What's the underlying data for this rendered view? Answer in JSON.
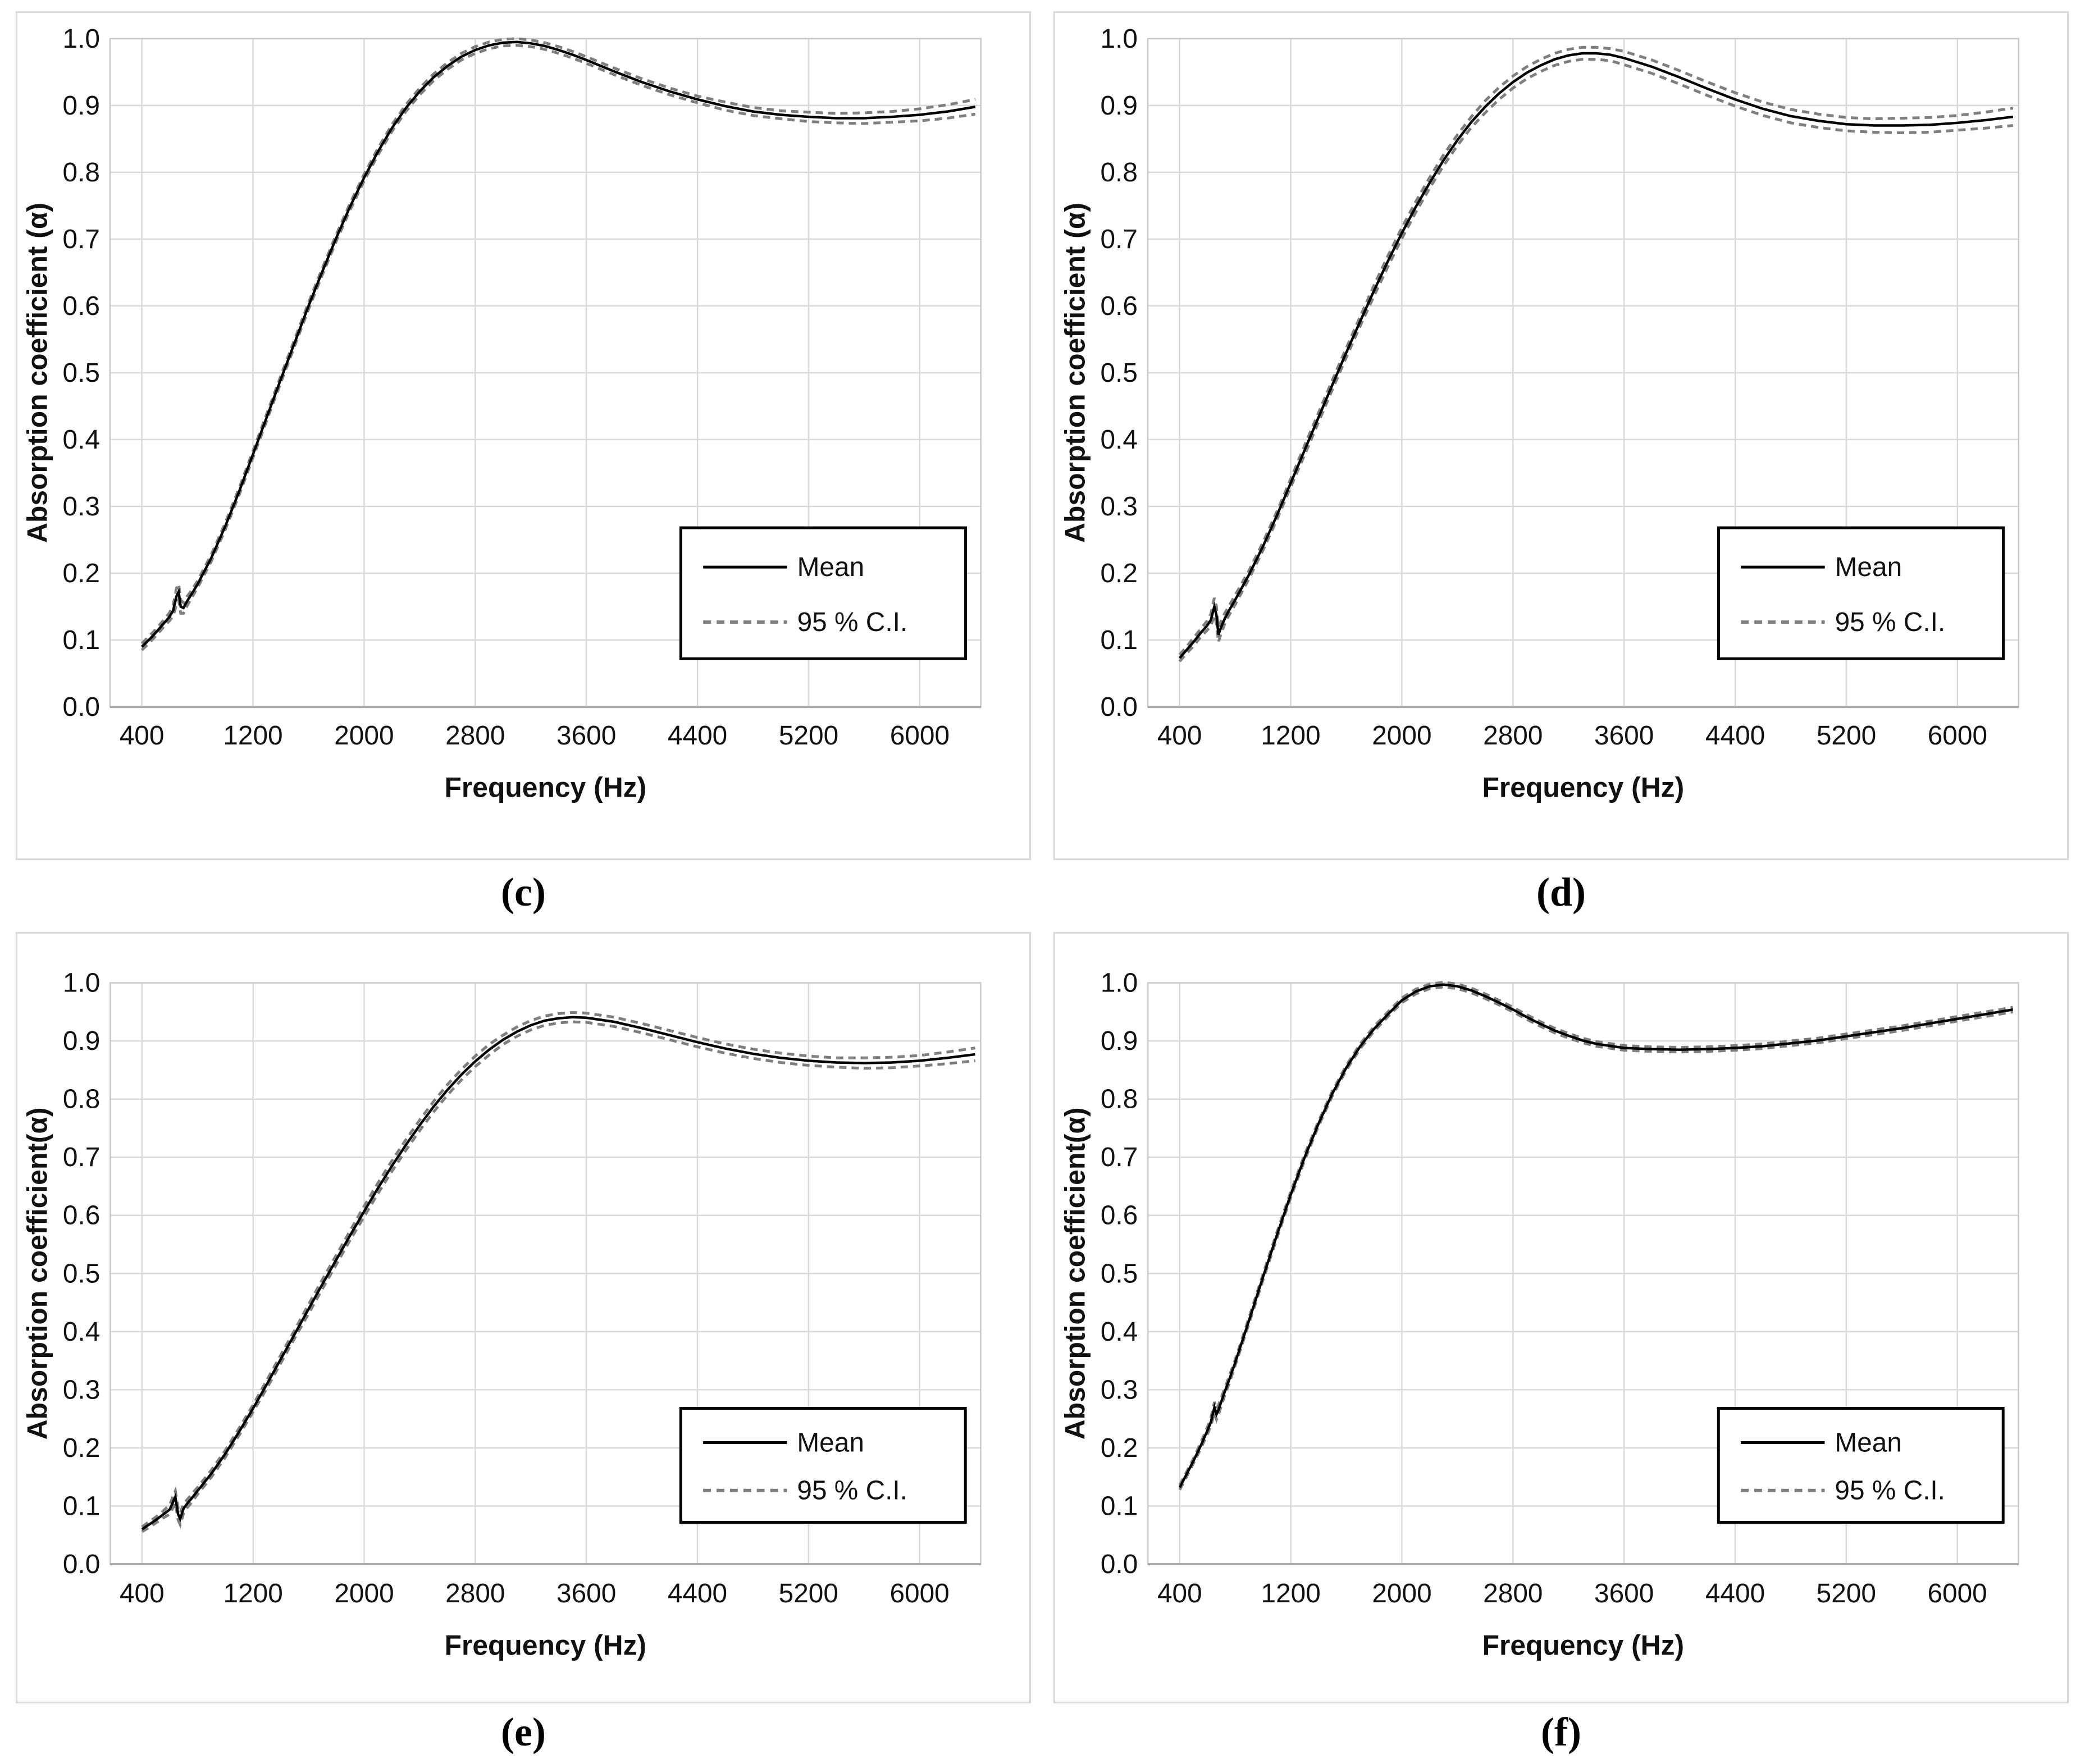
{
  "colors": {
    "mean_line": "#000000",
    "ci_line": "#7f7f7f",
    "gridline": "#d9d9d9",
    "plot_border": "#c9c9c9",
    "axis_line": "#a6a6a6",
    "text": "#111111",
    "legend_border": "#000000"
  },
  "chart_data": [
    {
      "type": "line",
      "title": "(c)",
      "xlabel": "Frequency (Hz)",
      "ylabel": "Absorption coefficient (α)",
      "xlim": [
        171,
        6440
      ],
      "ylim": [
        0.0,
        1.0
      ],
      "xticks": [
        400,
        1200,
        2000,
        2800,
        3600,
        4400,
        5200,
        6000
      ],
      "ytick_labels": [
        "0.0",
        "0.1",
        "0.2",
        "0.3",
        "0.4",
        "0.5",
        "0.6",
        "0.7",
        "0.8",
        "0.9",
        "1.0"
      ],
      "grid": true,
      "legend_position": "lower right",
      "legend": [
        "Mean",
        "95 % C.I."
      ],
      "columns": [
        "frequency_hz",
        "mean_absorption",
        "ci95_halfwidth"
      ],
      "points": [
        [
          400,
          0.09,
          0.005
        ],
        [
          450,
          0.1,
          0.005
        ],
        [
          500,
          0.111,
          0.005
        ],
        [
          550,
          0.123,
          0.005
        ],
        [
          600,
          0.135,
          0.006
        ],
        [
          625,
          0.144,
          0.008
        ],
        [
          650,
          0.166,
          0.012
        ],
        [
          665,
          0.172,
          0.012
        ],
        [
          680,
          0.15,
          0.01
        ],
        [
          700,
          0.148,
          0.008
        ],
        [
          725,
          0.158,
          0.007
        ],
        [
          750,
          0.166,
          0.006
        ],
        [
          800,
          0.183,
          0.005
        ],
        [
          900,
          0.223,
          0.005
        ],
        [
          1000,
          0.27,
          0.005
        ],
        [
          1100,
          0.322,
          0.005
        ],
        [
          1200,
          0.378,
          0.005
        ],
        [
          1300,
          0.434,
          0.005
        ],
        [
          1400,
          0.49,
          0.005
        ],
        [
          1500,
          0.545,
          0.005
        ],
        [
          1600,
          0.6,
          0.005
        ],
        [
          1700,
          0.652,
          0.005
        ],
        [
          1800,
          0.702,
          0.005
        ],
        [
          1900,
          0.749,
          0.005
        ],
        [
          2000,
          0.792,
          0.005
        ],
        [
          2100,
          0.831,
          0.005
        ],
        [
          2200,
          0.866,
          0.005
        ],
        [
          2300,
          0.896,
          0.005
        ],
        [
          2400,
          0.921,
          0.005
        ],
        [
          2500,
          0.942,
          0.005
        ],
        [
          2600,
          0.959,
          0.005
        ],
        [
          2700,
          0.973,
          0.005
        ],
        [
          2800,
          0.983,
          0.005
        ],
        [
          2900,
          0.99,
          0.005
        ],
        [
          3000,
          0.994,
          0.005
        ],
        [
          3100,
          0.995,
          0.005
        ],
        [
          3200,
          0.993,
          0.005
        ],
        [
          3300,
          0.989,
          0.005
        ],
        [
          3400,
          0.983,
          0.005
        ],
        [
          3500,
          0.976,
          0.005
        ],
        [
          3600,
          0.968,
          0.005
        ],
        [
          3800,
          0.951,
          0.005
        ],
        [
          4000,
          0.935,
          0.005
        ],
        [
          4200,
          0.921,
          0.005
        ],
        [
          4400,
          0.909,
          0.005
        ],
        [
          4600,
          0.899,
          0.006
        ],
        [
          4800,
          0.891,
          0.006
        ],
        [
          5000,
          0.886,
          0.006
        ],
        [
          5200,
          0.883,
          0.007
        ],
        [
          5400,
          0.881,
          0.007
        ],
        [
          5600,
          0.881,
          0.008
        ],
        [
          5800,
          0.883,
          0.008
        ],
        [
          6000,
          0.886,
          0.009
        ],
        [
          6200,
          0.891,
          0.01
        ],
        [
          6400,
          0.898,
          0.011
        ]
      ]
    },
    {
      "type": "line",
      "title": "(d)",
      "xlabel": "Frequency (Hz)",
      "ylabel": "Absorption coefficient (α)",
      "xlim": [
        171,
        6440
      ],
      "ylim": [
        0.0,
        1.0
      ],
      "xticks": [
        400,
        1200,
        2000,
        2800,
        3600,
        4400,
        5200,
        6000
      ],
      "ytick_labels": [
        "0.0",
        "0.1",
        "0.2",
        "0.3",
        "0.4",
        "0.5",
        "0.6",
        "0.7",
        "0.8",
        "0.9",
        "1.0"
      ],
      "grid": true,
      "legend_position": "lower right",
      "legend": [
        "Mean",
        "95 % C.I."
      ],
      "columns": [
        "frequency_hz",
        "mean_absorption",
        "ci95_halfwidth"
      ],
      "points": [
        [
          400,
          0.073,
          0.005
        ],
        [
          450,
          0.085,
          0.005
        ],
        [
          500,
          0.097,
          0.006
        ],
        [
          550,
          0.11,
          0.006
        ],
        [
          600,
          0.122,
          0.007
        ],
        [
          625,
          0.13,
          0.009
        ],
        [
          650,
          0.15,
          0.013
        ],
        [
          665,
          0.138,
          0.013
        ],
        [
          680,
          0.108,
          0.011
        ],
        [
          700,
          0.12,
          0.009
        ],
        [
          725,
          0.132,
          0.008
        ],
        [
          750,
          0.142,
          0.007
        ],
        [
          800,
          0.16,
          0.007
        ],
        [
          900,
          0.198,
          0.006
        ],
        [
          1000,
          0.24,
          0.006
        ],
        [
          1100,
          0.286,
          0.006
        ],
        [
          1200,
          0.335,
          0.006
        ],
        [
          1300,
          0.384,
          0.007
        ],
        [
          1400,
          0.433,
          0.007
        ],
        [
          1500,
          0.482,
          0.007
        ],
        [
          1600,
          0.53,
          0.007
        ],
        [
          1700,
          0.577,
          0.007
        ],
        [
          1800,
          0.623,
          0.008
        ],
        [
          1900,
          0.667,
          0.008
        ],
        [
          2000,
          0.709,
          0.008
        ],
        [
          2100,
          0.748,
          0.008
        ],
        [
          2200,
          0.784,
          0.008
        ],
        [
          2300,
          0.818,
          0.008
        ],
        [
          2400,
          0.848,
          0.008
        ],
        [
          2500,
          0.875,
          0.008
        ],
        [
          2600,
          0.898,
          0.009
        ],
        [
          2700,
          0.918,
          0.009
        ],
        [
          2800,
          0.935,
          0.009
        ],
        [
          2900,
          0.949,
          0.009
        ],
        [
          3000,
          0.96,
          0.009
        ],
        [
          3100,
          0.969,
          0.009
        ],
        [
          3200,
          0.975,
          0.009
        ],
        [
          3300,
          0.978,
          0.009
        ],
        [
          3400,
          0.978,
          0.009
        ],
        [
          3500,
          0.976,
          0.009
        ],
        [
          3600,
          0.971,
          0.01
        ],
        [
          3800,
          0.958,
          0.01
        ],
        [
          4000,
          0.942,
          0.01
        ],
        [
          4200,
          0.925,
          0.01
        ],
        [
          4400,
          0.909,
          0.01
        ],
        [
          4600,
          0.895,
          0.01
        ],
        [
          4800,
          0.884,
          0.01
        ],
        [
          5000,
          0.877,
          0.01
        ],
        [
          5200,
          0.872,
          0.01
        ],
        [
          5400,
          0.87,
          0.01
        ],
        [
          5600,
          0.87,
          0.011
        ],
        [
          5800,
          0.871,
          0.011
        ],
        [
          6000,
          0.874,
          0.011
        ],
        [
          6200,
          0.878,
          0.012
        ],
        [
          6400,
          0.883,
          0.013
        ]
      ]
    },
    {
      "type": "line",
      "title": "(e)",
      "xlabel": "Frequency (Hz)",
      "ylabel": "Absorption coefficient(α)",
      "xlim": [
        171,
        6440
      ],
      "ylim": [
        0.0,
        1.0
      ],
      "xticks": [
        400,
        1200,
        2000,
        2800,
        3600,
        4400,
        5200,
        6000
      ],
      "ytick_labels": [
        "0.0",
        "0.1",
        "0.2",
        "0.3",
        "0.4",
        "0.5",
        "0.6",
        "0.7",
        "0.8",
        "0.9",
        "1.0"
      ],
      "grid": true,
      "legend_position": "lower right",
      "legend": [
        "Mean",
        "95 % C.I."
      ],
      "columns": [
        "frequency_hz",
        "mean_absorption",
        "ci95_halfwidth"
      ],
      "points": [
        [
          400,
          0.06,
          0.004
        ],
        [
          450,
          0.068,
          0.005
        ],
        [
          500,
          0.076,
          0.005
        ],
        [
          550,
          0.085,
          0.006
        ],
        [
          600,
          0.094,
          0.008
        ],
        [
          625,
          0.108,
          0.01
        ],
        [
          640,
          0.116,
          0.01
        ],
        [
          660,
          0.086,
          0.01
        ],
        [
          675,
          0.078,
          0.01
        ],
        [
          700,
          0.096,
          0.008
        ],
        [
          725,
          0.104,
          0.007
        ],
        [
          750,
          0.111,
          0.007
        ],
        [
          800,
          0.126,
          0.006
        ],
        [
          900,
          0.156,
          0.006
        ],
        [
          1000,
          0.19,
          0.006
        ],
        [
          1100,
          0.228,
          0.006
        ],
        [
          1200,
          0.268,
          0.006
        ],
        [
          1300,
          0.31,
          0.007
        ],
        [
          1400,
          0.353,
          0.007
        ],
        [
          1500,
          0.396,
          0.007
        ],
        [
          1600,
          0.439,
          0.008
        ],
        [
          1700,
          0.482,
          0.008
        ],
        [
          1800,
          0.524,
          0.008
        ],
        [
          1900,
          0.566,
          0.008
        ],
        [
          2000,
          0.607,
          0.009
        ],
        [
          2100,
          0.647,
          0.009
        ],
        [
          2200,
          0.685,
          0.009
        ],
        [
          2300,
          0.721,
          0.009
        ],
        [
          2400,
          0.755,
          0.009
        ],
        [
          2500,
          0.787,
          0.009
        ],
        [
          2600,
          0.816,
          0.009
        ],
        [
          2700,
          0.842,
          0.009
        ],
        [
          2800,
          0.865,
          0.009
        ],
        [
          2900,
          0.885,
          0.009
        ],
        [
          3000,
          0.902,
          0.008
        ],
        [
          3100,
          0.916,
          0.008
        ],
        [
          3200,
          0.927,
          0.008
        ],
        [
          3300,
          0.935,
          0.008
        ],
        [
          3400,
          0.939,
          0.008
        ],
        [
          3500,
          0.941,
          0.008
        ],
        [
          3600,
          0.94,
          0.008
        ],
        [
          3800,
          0.933,
          0.008
        ],
        [
          4000,
          0.922,
          0.008
        ],
        [
          4200,
          0.91,
          0.008
        ],
        [
          4400,
          0.898,
          0.008
        ],
        [
          4600,
          0.887,
          0.008
        ],
        [
          4800,
          0.878,
          0.008
        ],
        [
          5000,
          0.871,
          0.008
        ],
        [
          5200,
          0.866,
          0.008
        ],
        [
          5400,
          0.863,
          0.008
        ],
        [
          5600,
          0.862,
          0.009
        ],
        [
          5800,
          0.863,
          0.009
        ],
        [
          6000,
          0.866,
          0.009
        ],
        [
          6200,
          0.871,
          0.01
        ],
        [
          6400,
          0.877,
          0.011
        ]
      ]
    },
    {
      "type": "line",
      "title": "(f)",
      "xlabel": "Frequency (Hz)",
      "ylabel": "Absorption coefficient(α)",
      "xlim": [
        171,
        6440
      ],
      "ylim": [
        0.0,
        1.0
      ],
      "xticks": [
        400,
        1200,
        2000,
        2800,
        3600,
        4400,
        5200,
        6000
      ],
      "ytick_labels": [
        "0.0",
        "0.1",
        "0.2",
        "0.3",
        "0.4",
        "0.5",
        "0.6",
        "0.7",
        "0.8",
        "0.9",
        "1.0"
      ],
      "grid": true,
      "legend_position": "lower right",
      "legend": [
        "Mean",
        "95 % C.I."
      ],
      "columns": [
        "frequency_hz",
        "mean_absorption",
        "ci95_halfwidth"
      ],
      "points": [
        [
          400,
          0.132,
          0.004
        ],
        [
          450,
          0.155,
          0.004
        ],
        [
          500,
          0.178,
          0.004
        ],
        [
          550,
          0.203,
          0.005
        ],
        [
          600,
          0.23,
          0.006
        ],
        [
          625,
          0.245,
          0.007
        ],
        [
          650,
          0.27,
          0.009
        ],
        [
          665,
          0.258,
          0.009
        ],
        [
          680,
          0.266,
          0.008
        ],
        [
          700,
          0.28,
          0.007
        ],
        [
          725,
          0.297,
          0.006
        ],
        [
          750,
          0.313,
          0.006
        ],
        [
          800,
          0.347,
          0.005
        ],
        [
          900,
          0.42,
          0.005
        ],
        [
          1000,
          0.494,
          0.005
        ],
        [
          1100,
          0.566,
          0.005
        ],
        [
          1200,
          0.636,
          0.005
        ],
        [
          1300,
          0.7,
          0.005
        ],
        [
          1400,
          0.758,
          0.004
        ],
        [
          1500,
          0.81,
          0.004
        ],
        [
          1600,
          0.854,
          0.004
        ],
        [
          1700,
          0.891,
          0.004
        ],
        [
          1800,
          0.921,
          0.004
        ],
        [
          1900,
          0.946,
          0.004
        ],
        [
          2000,
          0.97,
          0.004
        ],
        [
          2100,
          0.985,
          0.004
        ],
        [
          2200,
          0.994,
          0.004
        ],
        [
          2300,
          0.997,
          0.004
        ],
        [
          2400,
          0.994,
          0.004
        ],
        [
          2500,
          0.987,
          0.004
        ],
        [
          2600,
          0.977,
          0.004
        ],
        [
          2700,
          0.966,
          0.004
        ],
        [
          2800,
          0.954,
          0.004
        ],
        [
          2900,
          0.941,
          0.004
        ],
        [
          3000,
          0.929,
          0.004
        ],
        [
          3100,
          0.918,
          0.004
        ],
        [
          3200,
          0.909,
          0.004
        ],
        [
          3300,
          0.901,
          0.004
        ],
        [
          3400,
          0.895,
          0.004
        ],
        [
          3600,
          0.888,
          0.004
        ],
        [
          3800,
          0.886,
          0.004
        ],
        [
          4000,
          0.885,
          0.004
        ],
        [
          4200,
          0.886,
          0.004
        ],
        [
          4400,
          0.888,
          0.004
        ],
        [
          4600,
          0.891,
          0.004
        ],
        [
          4800,
          0.896,
          0.004
        ],
        [
          5000,
          0.901,
          0.004
        ],
        [
          5200,
          0.908,
          0.004
        ],
        [
          5400,
          0.915,
          0.004
        ],
        [
          5600,
          0.922,
          0.004
        ],
        [
          5800,
          0.93,
          0.004
        ],
        [
          6000,
          0.938,
          0.004
        ],
        [
          6200,
          0.946,
          0.004
        ],
        [
          6400,
          0.954,
          0.004
        ]
      ]
    }
  ]
}
